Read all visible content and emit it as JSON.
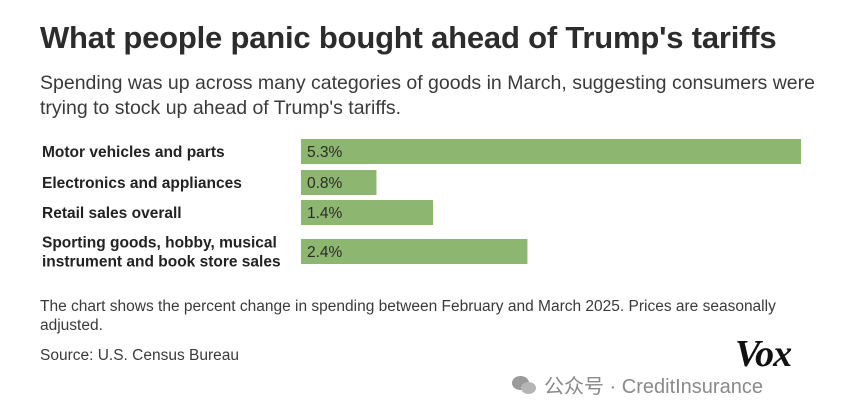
{
  "header": {
    "title": "What people panic bought ahead of Trump's tariffs",
    "subtitle": "Spending was up across many categories of goods in March, suggesting consumers were trying to stock up ahead of Trump's tariffs."
  },
  "chart_data": {
    "type": "bar",
    "orientation": "horizontal",
    "title": "What people panic bought ahead of Trump's tariffs",
    "categories": [
      "Motor vehicles and parts",
      "Electronics and appliances",
      "Retail sales overall",
      "Sporting goods, hobby, musical instrument and book store sales"
    ],
    "category_lines": [
      [
        "Motor vehicles and parts"
      ],
      [
        "Electronics and appliances"
      ],
      [
        "Retail sales overall"
      ],
      [
        "Sporting goods, hobby, musical",
        "instrument and book store sales"
      ]
    ],
    "values": [
      5.3,
      0.8,
      1.4,
      2.4
    ],
    "value_labels": [
      "5.3%",
      "0.8%",
      "1.4%",
      "2.4%"
    ],
    "unit": "%",
    "xlim": [
      0,
      5.3
    ],
    "bar_color": "#8db670",
    "grid": false,
    "legend": "none"
  },
  "footer": {
    "note": "The chart shows the percent change in spending between February and March 2025. Prices are seasonally adjusted.",
    "source": "Source: U.S. Census Bureau",
    "logo": "Vox",
    "watermark": "公众号 · CreditInsurance"
  }
}
